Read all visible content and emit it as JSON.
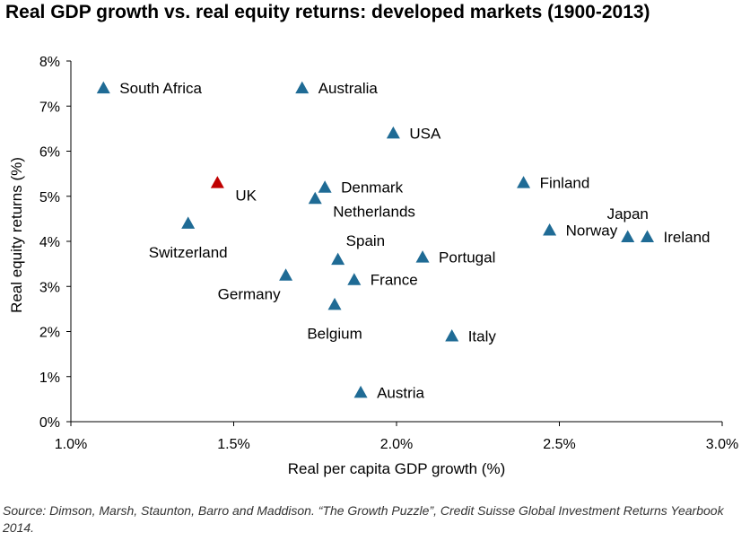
{
  "title": "Real GDP growth vs. real equity returns: developed markets (1900-2013)",
  "source": "Source: Dimson, Marsh, Staunton, Barro and Maddison. “The Growth  Puzzle”,  Credit Suisse Global Investment Returns Yearbook 2014.",
  "colors": {
    "default": "#1f6b95",
    "highlight": "#c00000"
  },
  "chart_data": {
    "type": "scatter",
    "title": "Real GDP growth vs. real equity returns: developed markets (1900-2013)",
    "xlabel": "Real per capita GDP growth (%)",
    "ylabel": "Real equity returns (%)",
    "xlim": [
      1.0,
      3.0
    ],
    "ylim": [
      0,
      8
    ],
    "x_ticks": [
      1.0,
      1.5,
      2.0,
      2.5,
      3.0
    ],
    "x_tick_labels": [
      "1.0%",
      "1.5%",
      "2.0%",
      "2.5%",
      "3.0%"
    ],
    "y_ticks": [
      0,
      1,
      2,
      3,
      4,
      5,
      6,
      7,
      8
    ],
    "y_tick_labels": [
      "0%",
      "1%",
      "2%",
      "3%",
      "4%",
      "5%",
      "6%",
      "7%",
      "8%"
    ],
    "grid": false,
    "legend": "none",
    "marker": "triangle",
    "points": [
      {
        "label": "South Africa",
        "x": 1.1,
        "y": 7.4,
        "label_side": "right"
      },
      {
        "label": "Australia",
        "x": 1.71,
        "y": 7.4,
        "label_side": "right"
      },
      {
        "label": "USA",
        "x": 1.99,
        "y": 6.4,
        "label_side": "right"
      },
      {
        "label": "UK",
        "x": 1.45,
        "y": 5.3,
        "label_side": "below-right",
        "highlight": true
      },
      {
        "label": "Denmark",
        "x": 1.78,
        "y": 5.2,
        "label_side": "right"
      },
      {
        "label": "Netherlands",
        "x": 1.75,
        "y": 4.95,
        "label_side": "below-right"
      },
      {
        "label": "Finland",
        "x": 2.39,
        "y": 5.3,
        "label_side": "right"
      },
      {
        "label": "Switzerland",
        "x": 1.36,
        "y": 4.4,
        "label_side": "below"
      },
      {
        "label": "Norway",
        "x": 2.47,
        "y": 4.25,
        "label_side": "right"
      },
      {
        "label": "Japan",
        "x": 2.71,
        "y": 4.1,
        "label_side": "above"
      },
      {
        "label": "Ireland",
        "x": 2.77,
        "y": 4.1,
        "label_side": "right"
      },
      {
        "label": "Spain",
        "x": 1.82,
        "y": 3.6,
        "label_side": "above-right"
      },
      {
        "label": "Portugal",
        "x": 2.08,
        "y": 3.65,
        "label_side": "right"
      },
      {
        "label": "Germany",
        "x": 1.66,
        "y": 3.25,
        "label_side": "below-left"
      },
      {
        "label": "France",
        "x": 1.87,
        "y": 3.15,
        "label_side": "right"
      },
      {
        "label": "Belgium",
        "x": 1.81,
        "y": 2.6,
        "label_side": "below"
      },
      {
        "label": "Italy",
        "x": 2.17,
        "y": 1.9,
        "label_side": "right"
      },
      {
        "label": "Austria",
        "x": 1.89,
        "y": 0.65,
        "label_side": "right"
      }
    ]
  }
}
